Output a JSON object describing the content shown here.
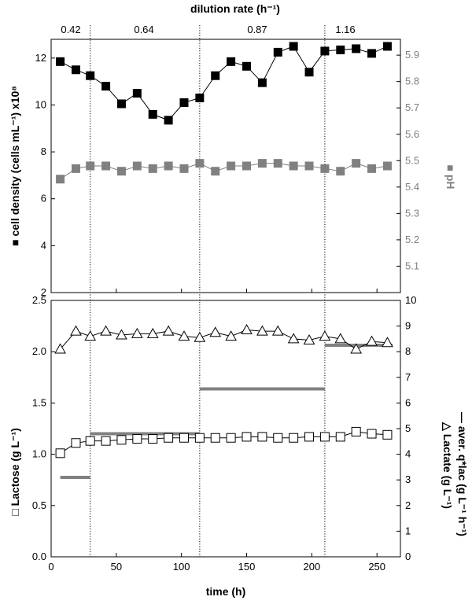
{
  "figure": {
    "top_title": "dilution rate (h⁻¹)",
    "dilution_rates": [
      "0.42",
      "0.64",
      "0.87",
      "1.16"
    ],
    "x_axis_title": "time (h)",
    "upper_left_title": "■ cell density (cells mL⁻¹)   x10⁸",
    "upper_right_title": "■ pH",
    "lower_left_title": "□ Lactose (g L⁻¹)",
    "lower_right_title_1": "△ Lactate (g L⁻¹)",
    "lower_right_title_2": "— aver. q*lac (g L⁻¹ h⁻¹)"
  },
  "chart_data": [
    {
      "type": "scatter",
      "panel": "upper",
      "xlim": [
        0,
        268
      ],
      "boundaries": [
        30,
        114,
        210
      ],
      "y_left": {
        "label": "cell density (cells mL⁻¹) x10⁸",
        "ylim": [
          2,
          12.8
        ],
        "ticks": [
          2,
          4,
          6,
          8,
          10,
          12
        ]
      },
      "y_right": {
        "label": "pH",
        "ylim": [
          5,
          5.96
        ],
        "ticks": [
          5.1,
          5.2,
          5.3,
          5.4,
          5.5,
          5.6,
          5.7,
          5.8,
          5.9
        ]
      },
      "series": [
        {
          "name": "cell density",
          "axis": "left",
          "marker": "filled-square",
          "color": "#000000",
          "connected": true,
          "x": [
            7,
            19,
            30,
            42,
            54,
            66,
            78,
            90,
            102,
            114,
            126,
            138,
            150,
            162,
            174,
            186,
            198,
            210,
            222,
            234,
            246,
            258
          ],
          "y": [
            11.85,
            11.5,
            11.25,
            10.8,
            10.05,
            10.5,
            9.6,
            9.35,
            10.1,
            10.3,
            11.25,
            11.85,
            11.65,
            10.95,
            12.25,
            12.5,
            11.4,
            12.3,
            12.35,
            12.4,
            12.2,
            12.5
          ]
        },
        {
          "name": "pH",
          "axis": "right",
          "marker": "filled-square",
          "color": "#808080",
          "connected": true,
          "x": [
            7,
            19,
            30,
            42,
            54,
            66,
            78,
            90,
            102,
            114,
            126,
            138,
            150,
            162,
            174,
            186,
            198,
            210,
            222,
            234,
            246,
            258
          ],
          "y": [
            5.43,
            5.47,
            5.48,
            5.48,
            5.46,
            5.48,
            5.47,
            5.48,
            5.47,
            5.49,
            5.46,
            5.48,
            5.48,
            5.49,
            5.49,
            5.48,
            5.48,
            5.47,
            5.46,
            5.49,
            5.47,
            5.48
          ]
        }
      ]
    },
    {
      "type": "scatter",
      "panel": "lower",
      "xlim": [
        0,
        268
      ],
      "xticks": [
        0,
        50,
        100,
        150,
        200,
        250
      ],
      "xlabel": "time (h)",
      "boundaries": [
        30,
        114,
        210
      ],
      "y_left": {
        "label": "Lactose (g L⁻¹)",
        "ylim": [
          0,
          2.5
        ],
        "ticks": [
          0.0,
          0.5,
          1.0,
          1.5,
          2.0,
          2.5
        ]
      },
      "y_right": {
        "label": "Lactate (g L⁻¹) / aver. q*lac (g L⁻¹ h⁻¹)",
        "ylim": [
          0,
          10
        ],
        "ticks": [
          0,
          1,
          2,
          3,
          4,
          5,
          6,
          7,
          8,
          9,
          10
        ]
      },
      "series": [
        {
          "name": "Lactose",
          "axis": "left",
          "marker": "open-square",
          "color": "#000000",
          "connected": true,
          "x": [
            7,
            19,
            30,
            42,
            54,
            66,
            78,
            90,
            102,
            114,
            126,
            138,
            150,
            162,
            174,
            186,
            198,
            210,
            222,
            234,
            246,
            258
          ],
          "y": [
            1.01,
            1.11,
            1.13,
            1.13,
            1.14,
            1.15,
            1.15,
            1.16,
            1.16,
            1.16,
            1.16,
            1.16,
            1.17,
            1.17,
            1.16,
            1.16,
            1.17,
            1.17,
            1.17,
            1.22,
            1.2,
            1.19
          ]
        },
        {
          "name": "Lactate",
          "axis": "right",
          "marker": "open-triangle",
          "color": "#000000",
          "connected": true,
          "x": [
            7,
            19,
            30,
            42,
            54,
            66,
            78,
            90,
            102,
            114,
            126,
            138,
            150,
            162,
            174,
            186,
            198,
            210,
            222,
            234,
            246,
            258
          ],
          "y": [
            8.1,
            8.8,
            8.6,
            8.8,
            8.65,
            8.7,
            8.7,
            8.8,
            8.6,
            8.55,
            8.75,
            8.6,
            8.85,
            8.8,
            8.8,
            8.5,
            8.45,
            8.6,
            8.5,
            8.1,
            8.4,
            8.35
          ]
        },
        {
          "name": "aver. q*lac",
          "axis": "right",
          "marker": "horizontal-segment",
          "color": "#808080",
          "segments": [
            {
              "x0": 7,
              "x1": 30,
              "y": 3.1
            },
            {
              "x0": 30,
              "x1": 114,
              "y": 4.8
            },
            {
              "x0": 114,
              "x1": 210,
              "y": 6.55
            },
            {
              "x0": 210,
              "x1": 262,
              "y": 8.25
            }
          ]
        }
      ]
    }
  ]
}
